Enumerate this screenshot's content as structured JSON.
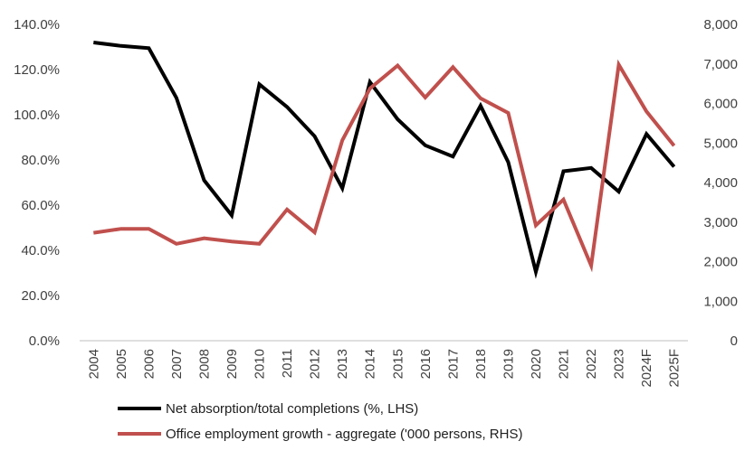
{
  "chart_data": {
    "type": "line",
    "title": "",
    "categories": [
      "2004",
      "2005",
      "2006",
      "2007",
      "2008",
      "2009",
      "2010",
      "2011",
      "2012",
      "2013",
      "2014",
      "2015",
      "2016",
      "2017",
      "2018",
      "2019",
      "2020",
      "2021",
      "2022",
      "2023",
      "2024F",
      "2025F"
    ],
    "y_left": {
      "range": [
        0,
        140
      ],
      "ticks": [
        "0.0%",
        "20.0%",
        "40.0%",
        "60.0%",
        "80.0%",
        "100.0%",
        "120.0%",
        "140.0%"
      ]
    },
    "y_right": {
      "range": [
        0,
        8000
      ],
      "ticks": [
        "0",
        "1,000",
        "2,000",
        "3,000",
        "4,000",
        "5,000",
        "6,000",
        "7,000",
        "8,000"
      ]
    },
    "grid": false,
    "legend_position": "bottom",
    "series": [
      {
        "name": "Net absorption/total completions (%, LHS)",
        "axis": "left",
        "color": "#000000",
        "values": [
          132,
          130.5,
          129.5,
          107.5,
          71,
          55.5,
          113.5,
          103.5,
          90.5,
          67.5,
          114.5,
          98,
          86.5,
          81.5,
          104,
          79,
          30.5,
          75,
          76.5,
          66,
          91.5,
          77
        ]
      },
      {
        "name": "Office employment growth - aggregate  ('000 persons, RHS)",
        "axis": "right",
        "color": "#c0504d",
        "values": [
          2730,
          2830,
          2830,
          2450,
          2590,
          2510,
          2450,
          3320,
          2740,
          5070,
          6380,
          6960,
          6150,
          6920,
          6130,
          5760,
          2920,
          3570,
          1900,
          6980,
          5800,
          4930
        ]
      }
    ]
  }
}
